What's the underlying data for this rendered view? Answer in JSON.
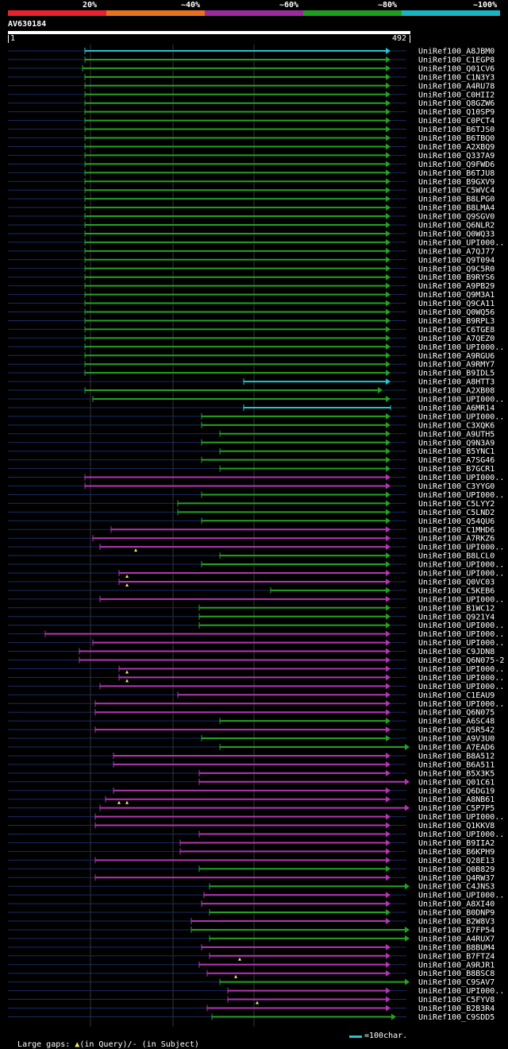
{
  "legend": {
    "labels": [
      "20%",
      "~40%",
      "~60%",
      "~80%",
      "~100%"
    ],
    "colors": [
      "#e8232f",
      "#e8731e",
      "#9b2b9e",
      "#1f9f1f",
      "#19b3c2"
    ]
  },
  "query": {
    "name": "AV630184",
    "start_label": "1",
    "end_label": "492",
    "length": 492
  },
  "colors": {
    "cyan": "#22c4d6",
    "green": "#23a323",
    "magenta": "#b535b5",
    "navy": "#1a2a6a",
    "yellow": "#f2e86a"
  },
  "footer": {
    "large_gaps_label": "Large gaps:",
    "in_query_label": "(in Query)/",
    "dash_glyph": "-",
    "in_subject_label": " (in Subject)",
    "scale_label": "=100char."
  },
  "hits": [
    {
      "name": "UniRef100_A8JBM0",
      "start": 107,
      "end": 492,
      "color": "cyan",
      "arrow": true,
      "insertions": []
    },
    {
      "name": "UniRef100_C1EGP8",
      "start": 107,
      "end": 492,
      "color": "green",
      "arrow": true,
      "insertions": []
    },
    {
      "name": "UniRef100_Q01CV6",
      "start": 104,
      "end": 492,
      "color": "green",
      "arrow": true,
      "insertions": []
    },
    {
      "name": "UniRef100_C1N3Y3",
      "start": 107,
      "end": 492,
      "color": "green",
      "arrow": true,
      "insertions": []
    },
    {
      "name": "UniRef100_A4RU78",
      "start": 107,
      "end": 492,
      "color": "green",
      "arrow": true,
      "insertions": []
    },
    {
      "name": "UniRef100_C0HII2",
      "start": 107,
      "end": 492,
      "color": "green",
      "arrow": true,
      "insertions": []
    },
    {
      "name": "UniRef100_Q8GZW6",
      "start": 107,
      "end": 492,
      "color": "green",
      "arrow": true,
      "insertions": []
    },
    {
      "name": "UniRef100_Q10SP9",
      "start": 107,
      "end": 492,
      "color": "green",
      "arrow": true,
      "insertions": []
    },
    {
      "name": "UniRef100_C0PCT4",
      "start": 107,
      "end": 492,
      "color": "green",
      "arrow": true,
      "insertions": []
    },
    {
      "name": "UniRef100_B6TJS0",
      "start": 107,
      "end": 492,
      "color": "green",
      "arrow": true,
      "insertions": []
    },
    {
      "name": "UniRef100_B6TBQ0",
      "start": 107,
      "end": 492,
      "color": "green",
      "arrow": true,
      "insertions": []
    },
    {
      "name": "UniRef100_A2XBQ9",
      "start": 107,
      "end": 492,
      "color": "green",
      "arrow": true,
      "insertions": []
    },
    {
      "name": "UniRef100_Q337A9",
      "start": 107,
      "end": 492,
      "color": "green",
      "arrow": true,
      "insertions": []
    },
    {
      "name": "UniRef100_Q9FWD6",
      "start": 107,
      "end": 492,
      "color": "green",
      "arrow": true,
      "insertions": []
    },
    {
      "name": "UniRef100_B6TJU8",
      "start": 107,
      "end": 492,
      "color": "green",
      "arrow": true,
      "insertions": []
    },
    {
      "name": "UniRef100_B9GXV9",
      "start": 107,
      "end": 492,
      "color": "green",
      "arrow": true,
      "insertions": []
    },
    {
      "name": "UniRef100_C5WVC4",
      "start": 107,
      "end": 492,
      "color": "green",
      "arrow": true,
      "insertions": []
    },
    {
      "name": "UniRef100_B8LPG0",
      "start": 107,
      "end": 492,
      "color": "green",
      "arrow": true,
      "insertions": []
    },
    {
      "name": "UniRef100_B8LMA4",
      "start": 107,
      "end": 492,
      "color": "green",
      "arrow": true,
      "insertions": []
    },
    {
      "name": "UniRef100_Q9SGV0",
      "start": 107,
      "end": 492,
      "color": "green",
      "arrow": true,
      "insertions": []
    },
    {
      "name": "UniRef100_Q6NLR2",
      "start": 107,
      "end": 492,
      "color": "green",
      "arrow": true,
      "insertions": []
    },
    {
      "name": "UniRef100_Q0WQ33",
      "start": 107,
      "end": 492,
      "color": "green",
      "arrow": true,
      "insertions": []
    },
    {
      "name": "UniRef100_UPI000..",
      "start": 107,
      "end": 492,
      "color": "green",
      "arrow": true,
      "insertions": []
    },
    {
      "name": "UniRef100_A7QJ77",
      "start": 107,
      "end": 492,
      "color": "green",
      "arrow": true,
      "insertions": []
    },
    {
      "name": "UniRef100_Q9T094",
      "start": 107,
      "end": 492,
      "color": "green",
      "arrow": true,
      "insertions": []
    },
    {
      "name": "UniRef100_Q9C5R0",
      "start": 107,
      "end": 492,
      "color": "green",
      "arrow": true,
      "insertions": []
    },
    {
      "name": "UniRef100_B9RYS6",
      "start": 107,
      "end": 492,
      "color": "green",
      "arrow": true,
      "insertions": []
    },
    {
      "name": "UniRef100_A9PB29",
      "start": 107,
      "end": 492,
      "color": "green",
      "arrow": true,
      "insertions": []
    },
    {
      "name": "UniRef100_Q9M3A1",
      "start": 107,
      "end": 492,
      "color": "green",
      "arrow": true,
      "insertions": []
    },
    {
      "name": "UniRef100_Q9CA11",
      "start": 107,
      "end": 492,
      "color": "green",
      "arrow": true,
      "insertions": []
    },
    {
      "name": "UniRef100_Q0WQ56",
      "start": 107,
      "end": 492,
      "color": "green",
      "arrow": true,
      "insertions": []
    },
    {
      "name": "UniRef100_B9RPL3",
      "start": 107,
      "end": 492,
      "color": "green",
      "arrow": true,
      "insertions": []
    },
    {
      "name": "UniRef100_C6TGE8",
      "start": 107,
      "end": 492,
      "color": "green",
      "arrow": true,
      "insertions": []
    },
    {
      "name": "UniRef100_A7QEZ0",
      "start": 107,
      "end": 492,
      "color": "green",
      "arrow": true,
      "insertions": []
    },
    {
      "name": "UniRef100_UPI000..",
      "start": 107,
      "end": 492,
      "color": "green",
      "arrow": true,
      "insertions": []
    },
    {
      "name": "UniRef100_A9RGU6",
      "start": 107,
      "end": 492,
      "color": "green",
      "arrow": true,
      "insertions": []
    },
    {
      "name": "UniRef100_A9RMY7",
      "start": 107,
      "end": 492,
      "color": "green",
      "arrow": true,
      "insertions": []
    },
    {
      "name": "UniRef100_B9IDL5",
      "start": 107,
      "end": 492,
      "color": "green",
      "arrow": true,
      "insertions": []
    },
    {
      "name": "UniRef100_A8HTT3",
      "start": 307,
      "end": 492,
      "color": "cyan",
      "arrow": true,
      "insertions": []
    },
    {
      "name": "UniRef100_A2XB08",
      "start": 107,
      "end": 482,
      "color": "green",
      "arrow": true,
      "insertions": []
    },
    {
      "name": "UniRef100_UPI000..",
      "start": 117,
      "end": 492,
      "color": "green",
      "arrow": true,
      "insertions": []
    },
    {
      "name": "UniRef100_A6MR14",
      "start": 307,
      "end": 492,
      "color": "cyan",
      "arrow": false,
      "insertions": []
    },
    {
      "name": "UniRef100_UPI000..",
      "start": 254,
      "end": 492,
      "color": "green",
      "arrow": true,
      "insertions": []
    },
    {
      "name": "UniRef100_C3XQK6",
      "start": 254,
      "end": 492,
      "color": "green",
      "arrow": true,
      "insertions": []
    },
    {
      "name": "UniRef100_A9UTH5",
      "start": 277,
      "end": 492,
      "color": "green",
      "arrow": true,
      "insertions": []
    },
    {
      "name": "UniRef100_Q9N3A9",
      "start": 254,
      "end": 492,
      "color": "green",
      "arrow": true,
      "insertions": []
    },
    {
      "name": "UniRef100_B5YNC1",
      "start": 277,
      "end": 492,
      "color": "green",
      "arrow": true,
      "insertions": []
    },
    {
      "name": "UniRef100_A7SG46",
      "start": 254,
      "end": 492,
      "color": "green",
      "arrow": true,
      "insertions": []
    },
    {
      "name": "UniRef100_B7GCR1",
      "start": 277,
      "end": 492,
      "color": "green",
      "arrow": true,
      "insertions": []
    },
    {
      "name": "UniRef100_UPI000..",
      "start": 107,
      "end": 492,
      "color": "magenta",
      "arrow": true,
      "insertions": []
    },
    {
      "name": "UniRef100_C3YYG0",
      "start": 107,
      "end": 492,
      "color": "magenta",
      "arrow": true,
      "insertions": []
    },
    {
      "name": "UniRef100_UPI000..",
      "start": 254,
      "end": 492,
      "color": "green",
      "arrow": true,
      "insertions": []
    },
    {
      "name": "UniRef100_C5LYY2",
      "start": 224,
      "end": 492,
      "color": "green",
      "arrow": true,
      "insertions": []
    },
    {
      "name": "UniRef100_C5LND2",
      "start": 224,
      "end": 492,
      "color": "green",
      "arrow": true,
      "insertions": []
    },
    {
      "name": "UniRef100_Q54QU6",
      "start": 254,
      "end": 492,
      "color": "green",
      "arrow": true,
      "insertions": []
    },
    {
      "name": "UniRef100_C1MHD6",
      "start": 140,
      "end": 492,
      "color": "magenta",
      "arrow": true,
      "insertions": []
    },
    {
      "name": "UniRef100_A7RKZ6",
      "start": 117,
      "end": 492,
      "color": "magenta",
      "arrow": true,
      "insertions": []
    },
    {
      "name": "UniRef100_UPI000..",
      "start": 126,
      "end": 492,
      "color": "magenta",
      "arrow": true,
      "insertions": [
        171
      ]
    },
    {
      "name": "UniRef100_B8LCL0",
      "start": 277,
      "end": 492,
      "color": "green",
      "arrow": true,
      "insertions": []
    },
    {
      "name": "UniRef100_UPI000..",
      "start": 254,
      "end": 492,
      "color": "green",
      "arrow": true,
      "insertions": []
    },
    {
      "name": "UniRef100_UPI000..",
      "start": 150,
      "end": 492,
      "color": "magenta",
      "arrow": true,
      "insertions": [
        160
      ]
    },
    {
      "name": "UniRef100_Q0VC03",
      "start": 150,
      "end": 492,
      "color": "magenta",
      "arrow": true,
      "insertions": [
        160
      ]
    },
    {
      "name": "UniRef100_C5KEB6",
      "start": 341,
      "end": 492,
      "color": "green",
      "arrow": true,
      "insertions": []
    },
    {
      "name": "UniRef100_UPI000..",
      "start": 126,
      "end": 492,
      "color": "magenta",
      "arrow": true,
      "insertions": []
    },
    {
      "name": "UniRef100_B1WC12",
      "start": 251,
      "end": 492,
      "color": "green",
      "arrow": true,
      "insertions": []
    },
    {
      "name": "UniRef100_Q921Y4",
      "start": 251,
      "end": 492,
      "color": "green",
      "arrow": true,
      "insertions": []
    },
    {
      "name": "UniRef100_UPI000..",
      "start": 251,
      "end": 492,
      "color": "green",
      "arrow": true,
      "insertions": []
    },
    {
      "name": "UniRef100_UPI000..",
      "start": 57,
      "end": 492,
      "color": "magenta",
      "arrow": true,
      "insertions": []
    },
    {
      "name": "UniRef100_UPI000..",
      "start": 117,
      "end": 492,
      "color": "magenta",
      "arrow": true,
      "insertions": []
    },
    {
      "name": "UniRef100_C9JDN8",
      "start": 100,
      "end": 492,
      "color": "magenta",
      "arrow": true,
      "insertions": []
    },
    {
      "name": "UniRef100_Q6N075-2",
      "start": 100,
      "end": 492,
      "color": "magenta",
      "arrow": true,
      "insertions": []
    },
    {
      "name": "UniRef100_UPI000..",
      "start": 150,
      "end": 492,
      "color": "magenta",
      "arrow": true,
      "insertions": [
        160
      ]
    },
    {
      "name": "UniRef100_UPI000..",
      "start": 150,
      "end": 492,
      "color": "magenta",
      "arrow": true,
      "insertions": [
        160
      ]
    },
    {
      "name": "UniRef100_UPI000..",
      "start": 126,
      "end": 492,
      "color": "magenta",
      "arrow": true,
      "insertions": []
    },
    {
      "name": "UniRef100_C1EAU9",
      "start": 224,
      "end": 492,
      "color": "magenta",
      "arrow": true,
      "insertions": []
    },
    {
      "name": "UniRef100_UPI000..",
      "start": 120,
      "end": 492,
      "color": "magenta",
      "arrow": true,
      "insertions": []
    },
    {
      "name": "UniRef100_Q6N075",
      "start": 120,
      "end": 492,
      "color": "magenta",
      "arrow": true,
      "insertions": []
    },
    {
      "name": "UniRef100_A6SC48",
      "start": 277,
      "end": 492,
      "color": "green",
      "arrow": true,
      "insertions": []
    },
    {
      "name": "UniRef100_Q5R542",
      "start": 120,
      "end": 492,
      "color": "magenta",
      "arrow": true,
      "insertions": []
    },
    {
      "name": "UniRef100_A9V3U0",
      "start": 254,
      "end": 492,
      "color": "green",
      "arrow": true,
      "insertions": []
    },
    {
      "name": "UniRef100_A7EAD6",
      "start": 277,
      "end": 545,
      "color": "green",
      "arrow": true,
      "insertions": []
    },
    {
      "name": "UniRef100_B8A512",
      "start": 143,
      "end": 492,
      "color": "magenta",
      "arrow": true,
      "insertions": []
    },
    {
      "name": "UniRef100_B6A511",
      "start": 143,
      "end": 492,
      "color": "magenta",
      "arrow": true,
      "insertions": []
    },
    {
      "name": "UniRef100_B5X3K5",
      "start": 251,
      "end": 492,
      "color": "magenta",
      "arrow": true,
      "insertions": []
    },
    {
      "name": "UniRef100_Q01C61",
      "start": 251,
      "end": 563,
      "color": "magenta",
      "arrow": true,
      "insertions": []
    },
    {
      "name": "UniRef100_Q6DG19",
      "start": 143,
      "end": 492,
      "color": "magenta",
      "arrow": true,
      "insertions": []
    },
    {
      "name": "UniRef100_A8NB61",
      "start": 133,
      "end": 492,
      "color": "magenta",
      "arrow": true,
      "insertions": [
        150,
        160
      ]
    },
    {
      "name": "UniRef100_C5P7P5",
      "start": 126,
      "end": 565,
      "color": "magenta",
      "arrow": true,
      "insertions": []
    },
    {
      "name": "UniRef100_UPI000..",
      "start": 120,
      "end": 492,
      "color": "magenta",
      "arrow": true,
      "insertions": []
    },
    {
      "name": "UniRef100_Q1KKV8",
      "start": 120,
      "end": 492,
      "color": "magenta",
      "arrow": true,
      "insertions": []
    },
    {
      "name": "UniRef100_UPI000..",
      "start": 251,
      "end": 492,
      "color": "magenta",
      "arrow": true,
      "insertions": []
    },
    {
      "name": "UniRef100_B9IIA2",
      "start": 227,
      "end": 492,
      "color": "magenta",
      "arrow": true,
      "insertions": []
    },
    {
      "name": "UniRef100_B6KPH9",
      "start": 227,
      "end": 492,
      "color": "magenta",
      "arrow": true,
      "insertions": []
    },
    {
      "name": "UniRef100_Q28E13",
      "start": 120,
      "end": 492,
      "color": "magenta",
      "arrow": true,
      "insertions": []
    },
    {
      "name": "UniRef100_Q0B829",
      "start": 251,
      "end": 492,
      "color": "green",
      "arrow": true,
      "insertions": []
    },
    {
      "name": "UniRef100_Q4RW37",
      "start": 120,
      "end": 492,
      "color": "magenta",
      "arrow": true,
      "insertions": []
    },
    {
      "name": "UniRef100_C4JNS3",
      "start": 264,
      "end": 545,
      "color": "green",
      "arrow": true,
      "insertions": []
    },
    {
      "name": "UniRef100_UPI000..",
      "start": 257,
      "end": 492,
      "color": "magenta",
      "arrow": true,
      "insertions": []
    },
    {
      "name": "UniRef100_A8XI40",
      "start": 254,
      "end": 492,
      "color": "magenta",
      "arrow": true,
      "insertions": []
    },
    {
      "name": "UniRef100_B0DNP9",
      "start": 264,
      "end": 492,
      "color": "green",
      "arrow": true,
      "insertions": []
    },
    {
      "name": "UniRef100_B2W8V3",
      "start": 241,
      "end": 492,
      "color": "magenta",
      "arrow": true,
      "insertions": []
    },
    {
      "name": "UniRef100_B7FP54",
      "start": 241,
      "end": 527,
      "color": "green",
      "arrow": true,
      "insertions": []
    },
    {
      "name": "UniRef100_A4RUX7",
      "start": 264,
      "end": 545,
      "color": "green",
      "arrow": true,
      "insertions": []
    },
    {
      "name": "UniRef100_B8BUM4",
      "start": 254,
      "end": 492,
      "color": "magenta",
      "arrow": true,
      "insertions": []
    },
    {
      "name": "UniRef100_B7FTZ4",
      "start": 264,
      "end": 492,
      "color": "magenta",
      "arrow": true,
      "insertions": [
        302
      ]
    },
    {
      "name": "UniRef100_A9RJR1",
      "start": 251,
      "end": 492,
      "color": "magenta",
      "arrow": true,
      "insertions": []
    },
    {
      "name": "UniRef100_B8BSC8",
      "start": 261,
      "end": 492,
      "color": "magenta",
      "arrow": true,
      "insertions": [
        297
      ]
    },
    {
      "name": "UniRef100_C9SAV7",
      "start": 277,
      "end": 545,
      "color": "green",
      "arrow": true,
      "insertions": []
    },
    {
      "name": "UniRef100_UPI000..",
      "start": 287,
      "end": 492,
      "color": "magenta",
      "arrow": true,
      "insertions": []
    },
    {
      "name": "UniRef100_C5FYV8",
      "start": 287,
      "end": 492,
      "color": "magenta",
      "arrow": true,
      "insertions": [
        324
      ]
    },
    {
      "name": "UniRef100_B2B3R4",
      "start": 261,
      "end": 492,
      "color": "magenta",
      "arrow": true,
      "insertions": []
    },
    {
      "name": "UniRef100_C9SDD5",
      "start": 267,
      "end": 499,
      "color": "green",
      "arrow": true,
      "insertions": []
    }
  ]
}
